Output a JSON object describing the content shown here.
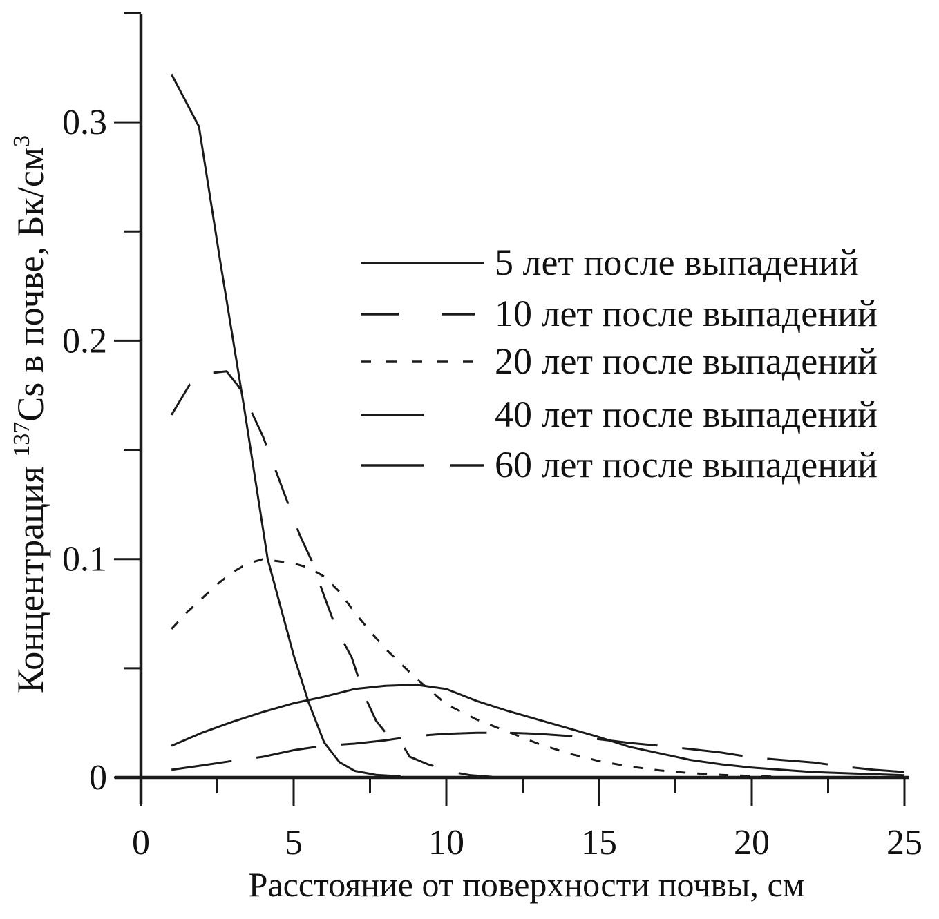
{
  "chart_data": {
    "type": "line",
    "title": "",
    "xlabel": "Расстояние от поверхности почвы, см",
    "ylabel": "Концентрация ¹³⁷Cs в почве, Бк/см³",
    "ylabel_parts": {
      "prefix": "Концентрация ",
      "isotope_superscript": "137",
      "middle": "Cs в почве, Бк/см",
      "volume_superscript": "3"
    },
    "xlim": [
      0,
      25
    ],
    "ylim": [
      0,
      0.35
    ],
    "x_major_ticks": [
      0,
      5,
      10,
      15,
      20,
      25
    ],
    "x_major_tick_labels": [
      "0",
      "5",
      "10",
      "15",
      "20",
      "25"
    ],
    "x_minor_ticks": [
      2.5,
      7.5,
      12.5,
      17.5,
      22.5
    ],
    "y_major_ticks": [
      0,
      0.1,
      0.2,
      0.3
    ],
    "y_major_tick_labels": [
      "0",
      "0.1",
      "0.2",
      "0.3"
    ],
    "y_minor_ticks": [
      0.05,
      0.15,
      0.25,
      0.35
    ],
    "grid": false,
    "legend_position": "inside upper right",
    "line_color": "#1a1a1a",
    "axis_color": "#1a1a1a",
    "series": [
      {
        "label": "5 лет после выпадений",
        "style": "solid",
        "dash": null,
        "points": [
          [
            1,
            0.322
          ],
          [
            1.9,
            0.298
          ],
          [
            2.6,
            0.236
          ],
          [
            3.37,
            0.17
          ],
          [
            4.15,
            0.1
          ],
          [
            5.0,
            0.056
          ],
          [
            5.5,
            0.034
          ],
          [
            6.0,
            0.016
          ],
          [
            6.5,
            0.007
          ],
          [
            7.0,
            0.003
          ],
          [
            7.7,
            0.0012
          ],
          [
            8.5,
            0.0005
          ]
        ]
      },
      {
        "label": "10 лет после выпадений",
        "style": "long-dash",
        "dash": [
          52,
          38
        ],
        "points": [
          [
            1,
            0.166
          ],
          [
            1.6,
            0.18
          ],
          [
            2.2,
            0.185
          ],
          [
            2.8,
            0.186
          ],
          [
            3.2,
            0.179
          ],
          [
            3.6,
            0.168
          ],
          [
            4.0,
            0.156
          ],
          [
            4.4,
            0.141
          ],
          [
            4.8,
            0.126
          ],
          [
            5.2,
            0.111
          ],
          [
            5.6,
            0.099
          ],
          [
            6.0,
            0.083
          ],
          [
            6.4,
            0.068
          ],
          [
            6.9,
            0.055
          ],
          [
            7.3,
            0.038
          ],
          [
            7.7,
            0.026
          ],
          [
            8.1,
            0.019
          ],
          [
            8.5,
            0.0165
          ],
          [
            8.8,
            0.0095
          ],
          [
            9.4,
            0.006
          ],
          [
            10.2,
            0.0025
          ],
          [
            10.8,
            0.001
          ],
          [
            11.5,
            0.0003
          ]
        ]
      },
      {
        "label": "20 лет после выпадений",
        "style": "short-dash",
        "dash": [
          14,
          17
        ],
        "points": [
          [
            1,
            0.068
          ],
          [
            1.5,
            0.0755
          ],
          [
            2,
            0.082
          ],
          [
            2.5,
            0.0885
          ],
          [
            3,
            0.094
          ],
          [
            3.5,
            0.098
          ],
          [
            4,
            0.1
          ],
          [
            4.5,
            0.099
          ],
          [
            5,
            0.098
          ],
          [
            5.5,
            0.096
          ],
          [
            6,
            0.092
          ],
          [
            6.5,
            0.085
          ],
          [
            7,
            0.0755
          ],
          [
            7.5,
            0.067
          ],
          [
            8,
            0.059
          ],
          [
            9,
            0.0455
          ],
          [
            10,
            0.0335
          ],
          [
            11,
            0.0265
          ],
          [
            12,
            0.021
          ],
          [
            13,
            0.0155
          ],
          [
            14,
            0.011
          ],
          [
            15,
            0.0075
          ],
          [
            16,
            0.005
          ],
          [
            17,
            0.0032
          ],
          [
            18,
            0.002
          ],
          [
            19,
            0.0012
          ],
          [
            20,
            0.0007
          ],
          [
            21,
            0.0003
          ]
        ]
      },
      {
        "label": "40 лет после выпадений",
        "style": "solid",
        "dash": null,
        "points": [
          [
            1,
            0.0145
          ],
          [
            2,
            0.0205
          ],
          [
            3,
            0.0255
          ],
          [
            4,
            0.03
          ],
          [
            5,
            0.034
          ],
          [
            6,
            0.037
          ],
          [
            7,
            0.0405
          ],
          [
            8,
            0.042
          ],
          [
            9,
            0.0425
          ],
          [
            10,
            0.0405
          ],
          [
            11,
            0.035
          ],
          [
            12,
            0.0305
          ],
          [
            13,
            0.0265
          ],
          [
            14,
            0.0225
          ],
          [
            15,
            0.0185
          ],
          [
            16,
            0.014
          ],
          [
            17,
            0.011
          ],
          [
            18,
            0.008
          ],
          [
            19,
            0.006
          ],
          [
            20,
            0.0045
          ],
          [
            22,
            0.0025
          ],
          [
            25,
            0.001
          ]
        ]
      },
      {
        "label": "60 лет после выпадений",
        "style": "long-dash",
        "dash": [
          88,
          36
        ],
        "points": [
          [
            1,
            0.0035
          ],
          [
            2,
            0.0055
          ],
          [
            3,
            0.0076
          ],
          [
            4,
            0.0095
          ],
          [
            5,
            0.0125
          ],
          [
            6,
            0.0145
          ],
          [
            7,
            0.0155
          ],
          [
            8,
            0.017
          ],
          [
            9,
            0.019
          ],
          [
            10,
            0.02
          ],
          [
            11,
            0.0205
          ],
          [
            12,
            0.0205
          ],
          [
            13,
            0.02
          ],
          [
            14,
            0.019
          ],
          [
            15,
            0.0175
          ],
          [
            16,
            0.0158
          ],
          [
            17,
            0.0145
          ],
          [
            18,
            0.013
          ],
          [
            19,
            0.0114
          ],
          [
            20,
            0.0092
          ],
          [
            21,
            0.008
          ],
          [
            22,
            0.0069
          ],
          [
            23,
            0.005
          ],
          [
            24,
            0.0035
          ],
          [
            25,
            0.0025
          ]
        ]
      }
    ]
  }
}
